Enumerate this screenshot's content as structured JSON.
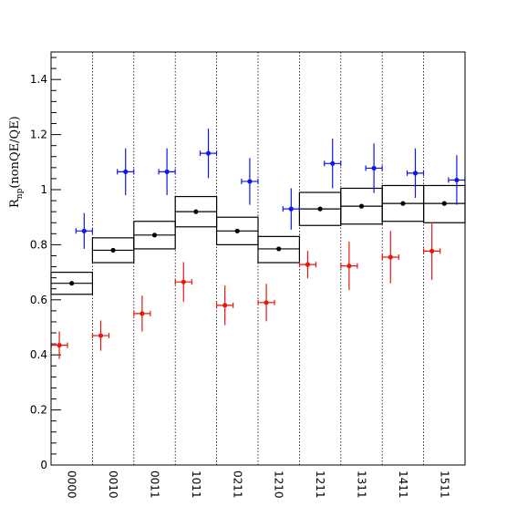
{
  "chart_data": {
    "type": "scatter",
    "title": "",
    "xlabel": "",
    "ylabel": "R",
    "ylabel_subscript": "np",
    "ylabel_suffix": "(nonQE/QE)",
    "ylim": [
      0,
      1.5
    ],
    "yticks": [
      0,
      0.2,
      0.4,
      0.6,
      0.8,
      1,
      1.2,
      1.4
    ],
    "ytick_labels": [
      "0",
      "0.2",
      "0.4",
      "0.6",
      "0.8",
      "1",
      "1.2",
      "1.4"
    ],
    "categories": [
      "0000",
      "0010",
      "0011",
      "1011",
      "0211",
      "1210",
      "1211",
      "1311",
      "1411",
      "1511"
    ],
    "grid": "vertical dotted separators",
    "colors": {
      "black": "#000000",
      "red": "#e8170f",
      "blue": "#0f17e8"
    },
    "series": [
      {
        "color": "black",
        "offset": 0,
        "values": [
          0.66,
          0.78,
          0.835,
          0.92,
          0.85,
          0.785,
          0.93,
          0.94,
          0.95,
          0.95
        ],
        "box_low": [
          0.62,
          0.735,
          0.785,
          0.865,
          0.8,
          0.735,
          0.87,
          0.875,
          0.885,
          0.88
        ],
        "box_high": [
          0.7,
          0.825,
          0.885,
          0.975,
          0.9,
          0.83,
          0.99,
          1.005,
          1.015,
          1.015
        ]
      },
      {
        "color": "red",
        "offset": -0.3,
        "values": [
          0.435,
          0.47,
          0.55,
          0.665,
          0.58,
          0.59,
          0.728,
          0.723,
          0.755,
          0.777
        ],
        "err": [
          0.05,
          0.055,
          0.065,
          0.072,
          0.072,
          0.068,
          0.05,
          0.088,
          0.095,
          0.105
        ]
      },
      {
        "color": "blue",
        "offset": 0.3,
        "values": [
          0.85,
          1.065,
          1.065,
          1.132,
          1.03,
          0.93,
          1.095,
          1.078,
          1.06,
          1.035
        ],
        "err": [
          0.065,
          0.085,
          0.085,
          0.09,
          0.085,
          0.075,
          0.09,
          0.09,
          0.09,
          0.09
        ]
      }
    ]
  }
}
